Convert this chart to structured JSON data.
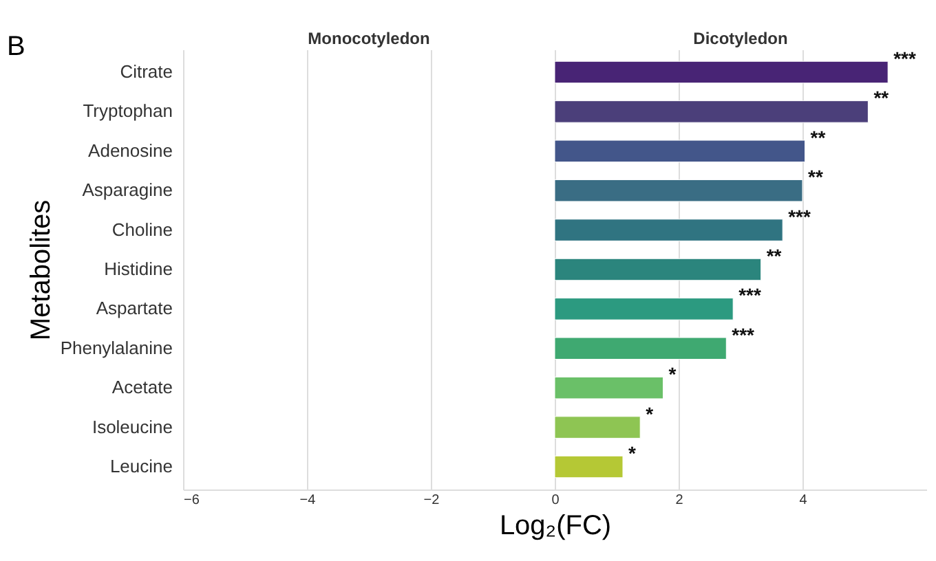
{
  "chart_data": {
    "type": "bar",
    "orientation": "horizontal",
    "categories": [
      "Citrate",
      "Tryptophan",
      "Adenosine",
      "Asparagine",
      "Choline",
      "Histidine",
      "Aspartate",
      "Phenylalanine",
      "Acetate",
      "Isoleucine",
      "Leucine"
    ],
    "values": [
      5.38,
      5.06,
      4.04,
      4.0,
      3.68,
      3.33,
      2.88,
      2.77,
      1.75,
      1.38,
      1.1
    ],
    "colors": [
      "#482475",
      "#4b3f7a",
      "#43568a",
      "#3a6d84",
      "#307481",
      "#2b857d",
      "#2c9a80",
      "#3fa971",
      "#6ac068",
      "#8ec553",
      "#b5c835"
    ],
    "xlabel": "Log₂(FC)",
    "ylabel": "Metabolites",
    "xlim": [
      -6,
      6
    ],
    "xticks": [
      -6,
      -4,
      -2,
      0,
      2,
      4
    ],
    "grid": "x",
    "annotations": [
      "B",
      "Monocotyledon",
      "Dicotyledon",
      {
        "text": "***",
        "x": 5.38,
        "y": "Citrate"
      },
      {
        "text": "**",
        "x": 5.06,
        "y": "Tryptophan"
      },
      {
        "text": "**",
        "x": 4.04,
        "y": "Adenosine"
      },
      {
        "text": "**",
        "x": 4.0,
        "y": "Asparagine"
      },
      {
        "text": "***",
        "x": 3.68,
        "y": "Choline"
      },
      {
        "text": "**",
        "x": 3.33,
        "y": "Histidine"
      },
      {
        "text": "***",
        "x": 2.88,
        "y": "Aspartate"
      },
      {
        "text": "***",
        "x": 2.77,
        "y": "Phenylalanine"
      },
      {
        "text": "*",
        "x": 1.75,
        "y": "Acetate"
      },
      {
        "text": "*",
        "x": 1.38,
        "y": "Isoleucine"
      },
      {
        "text": "*",
        "x": 1.1,
        "y": "Leucine"
      }
    ]
  }
}
